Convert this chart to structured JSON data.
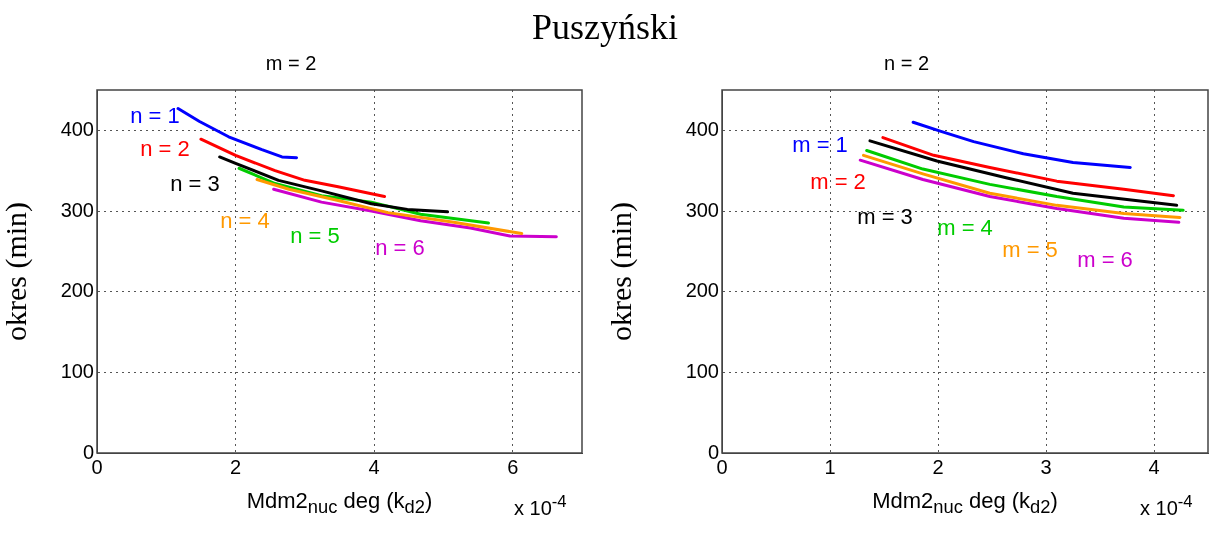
{
  "chart_data": [
    {
      "type": "line",
      "title": "m = 2",
      "xlabel": "Mdm2$_{nuc}$ deg (k$_{d2}$)",
      "ylabel": "okres (min)",
      "xlim": [
        0,
        7
      ],
      "xticks": [
        0,
        2,
        4,
        6
      ],
      "ylim": [
        0,
        450
      ],
      "yticks": [
        0,
        100,
        200,
        300,
        400
      ],
      "grid": true,
      "legend": false,
      "marker": "none",
      "line_style": "solid",
      "series": [
        {
          "name": "n = 1",
          "color": "#0000ff",
          "x": [
            1.17,
            1.48,
            1.9,
            2.38,
            2.67,
            2.88
          ],
          "values": [
            427,
            411,
            392,
            376,
            367,
            366
          ]
        },
        {
          "name": "n = 2",
          "color": "#ff0000",
          "x": [
            1.5,
            2.0,
            2.57,
            3.0,
            3.48,
            4.15
          ],
          "values": [
            389,
            369,
            350,
            338,
            330,
            318
          ]
        },
        {
          "name": "n = 3",
          "color": "#000000",
          "x": [
            1.77,
            2.0,
            2.62,
            3.24,
            3.96,
            4.48,
            5.06
          ],
          "values": [
            367,
            359,
            338,
            325,
            309,
            302,
            299
          ]
        },
        {
          "name": "n = 4",
          "color": "#ff9900",
          "x": [
            2.31,
            2.77,
            3.48,
            4.2,
            5.15,
            6.13
          ],
          "values": [
            339,
            327,
            313,
            298,
            286,
            272
          ]
        },
        {
          "name": "n = 5",
          "color": "#00cc00",
          "x": [
            2.05,
            2.57,
            3.24,
            3.96,
            4.67,
            5.65
          ],
          "values": [
            353,
            334,
            319,
            311,
            296,
            285
          ]
        },
        {
          "name": "n = 6",
          "color": "#cc00cc",
          "x": [
            2.55,
            3.24,
            3.96,
            4.67,
            5.39,
            5.96,
            6.63
          ],
          "values": [
            327,
            311,
            300,
            288,
            279,
            269,
            268
          ]
        }
      ],
      "annotations": [
        "Puszyński",
        "x 10$^{-4}$"
      ]
    },
    {
      "type": "line",
      "title": "n = 2",
      "xlabel": "Mdm2$_{nuc}$ deg (k$_{d2}$)",
      "ylabel": "okres (min)",
      "xlim": [
        0,
        4.5
      ],
      "xticks": [
        0,
        1,
        2,
        3,
        4
      ],
      "ylim": [
        0,
        450
      ],
      "yticks": [
        0,
        100,
        200,
        300,
        400
      ],
      "grid": true,
      "legend": false,
      "marker": "none",
      "line_style": "solid",
      "series": [
        {
          "name": "m = 1",
          "color": "#0000ff",
          "x": [
            1.77,
            2.02,
            2.33,
            2.79,
            3.25,
            3.78
          ],
          "values": [
            410,
            399,
            386,
            371,
            360,
            354
          ]
        },
        {
          "name": "m = 2",
          "color": "#ff0000",
          "x": [
            1.49,
            1.96,
            2.48,
            3.1,
            3.72,
            4.18
          ],
          "values": [
            391,
            369,
            354,
            337,
            327,
            319
          ]
        },
        {
          "name": "m = 3",
          "color": "#000000",
          "x": [
            1.37,
            1.99,
            2.64,
            3.25,
            4.21
          ],
          "values": [
            387,
            362,
            341,
            322,
            307
          ]
        },
        {
          "name": "m = 4",
          "color": "#00cc00",
          "x": [
            1.34,
            1.86,
            2.48,
            3.1,
            3.72,
            4.27
          ],
          "values": [
            375,
            352,
            333,
            318,
            305,
            301
          ]
        },
        {
          "name": "m = 5",
          "color": "#ff9900",
          "x": [
            1.31,
            1.86,
            2.48,
            3.1,
            3.72,
            4.24
          ],
          "values": [
            369,
            346,
            322,
            307,
            297,
            292
          ]
        },
        {
          "name": "m = 6",
          "color": "#cc00cc",
          "x": [
            1.28,
            1.86,
            2.48,
            3.1,
            3.72,
            4.23
          ],
          "values": [
            363,
            339,
            318,
            303,
            291,
            286
          ]
        }
      ],
      "annotations": [
        "x 10$^{-4}$"
      ]
    }
  ]
}
